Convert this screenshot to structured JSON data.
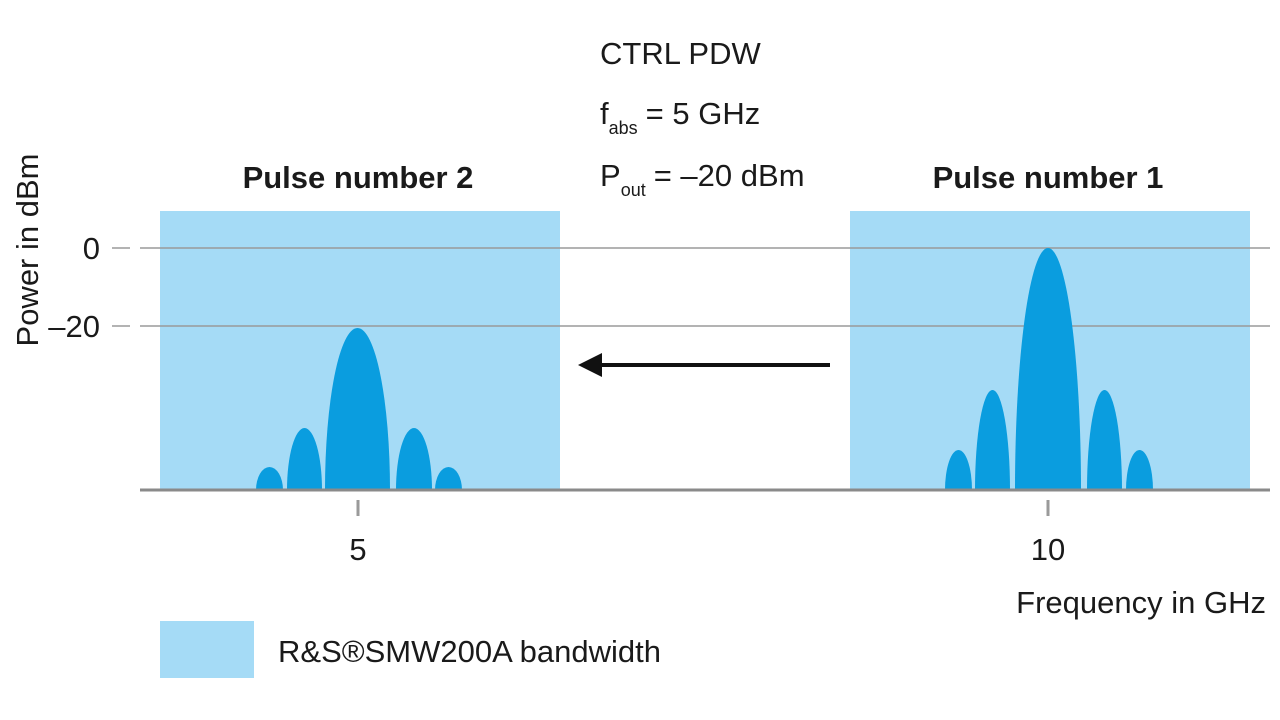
{
  "control": {
    "title": "CTRL PDW",
    "frequency": {
      "symbol": "f",
      "subscript": "abs",
      "text": "= 5 GHz"
    },
    "power": {
      "symbol": "P",
      "subscript": "out",
      "text": "= –20 dBm"
    }
  },
  "pulses": [
    {
      "label": "Pulse number 2"
    },
    {
      "label": "Pulse number 1"
    }
  ],
  "axes": {
    "y_label": "Power in dBm",
    "y_ticks": [
      "0",
      "–20"
    ],
    "x_ticks": [
      "5",
      "10"
    ],
    "x_label": "Frequency in GHz"
  },
  "legend": {
    "label": "R&S®SMW200A bandwidth"
  }
}
